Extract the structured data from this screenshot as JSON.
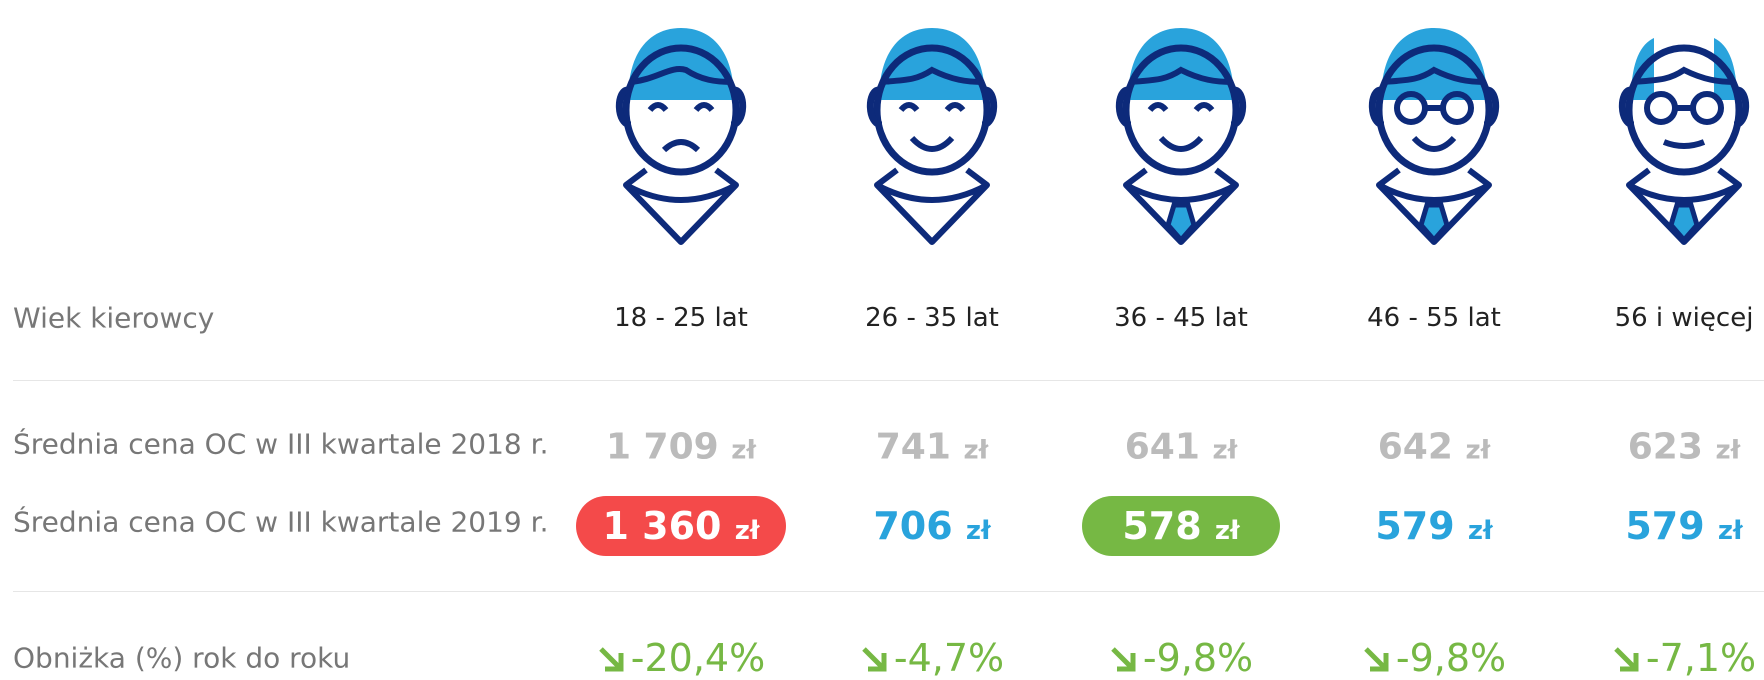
{
  "row_labels": {
    "age": "Wiek kierowcy",
    "price_2018": "Średnia cena OC w III kwartale 2018 r.",
    "price_2019": "Średnia cena OC w III kwartale 2019 r.",
    "change": "Obniżka (%) rok do roku"
  },
  "columns": [
    {
      "age": "18 - 25 lat",
      "price_2018": "1 709",
      "price_2019": "1 360",
      "change": "-20,4%"
    },
    {
      "age": "26 - 35 lat",
      "price_2018": "741",
      "price_2019": "706",
      "change": "-4,7%"
    },
    {
      "age": "36 - 45 lat",
      "price_2018": "641",
      "price_2019": "578",
      "change": "-9,8%"
    },
    {
      "age": "46 - 55 lat",
      "price_2018": "642",
      "price_2019": "579",
      "change": "-9,8%"
    },
    {
      "age": "56 i więcej",
      "price_2018": "623",
      "price_2019": "579",
      "change": "-7,1%"
    }
  ],
  "currency": "zł"
}
